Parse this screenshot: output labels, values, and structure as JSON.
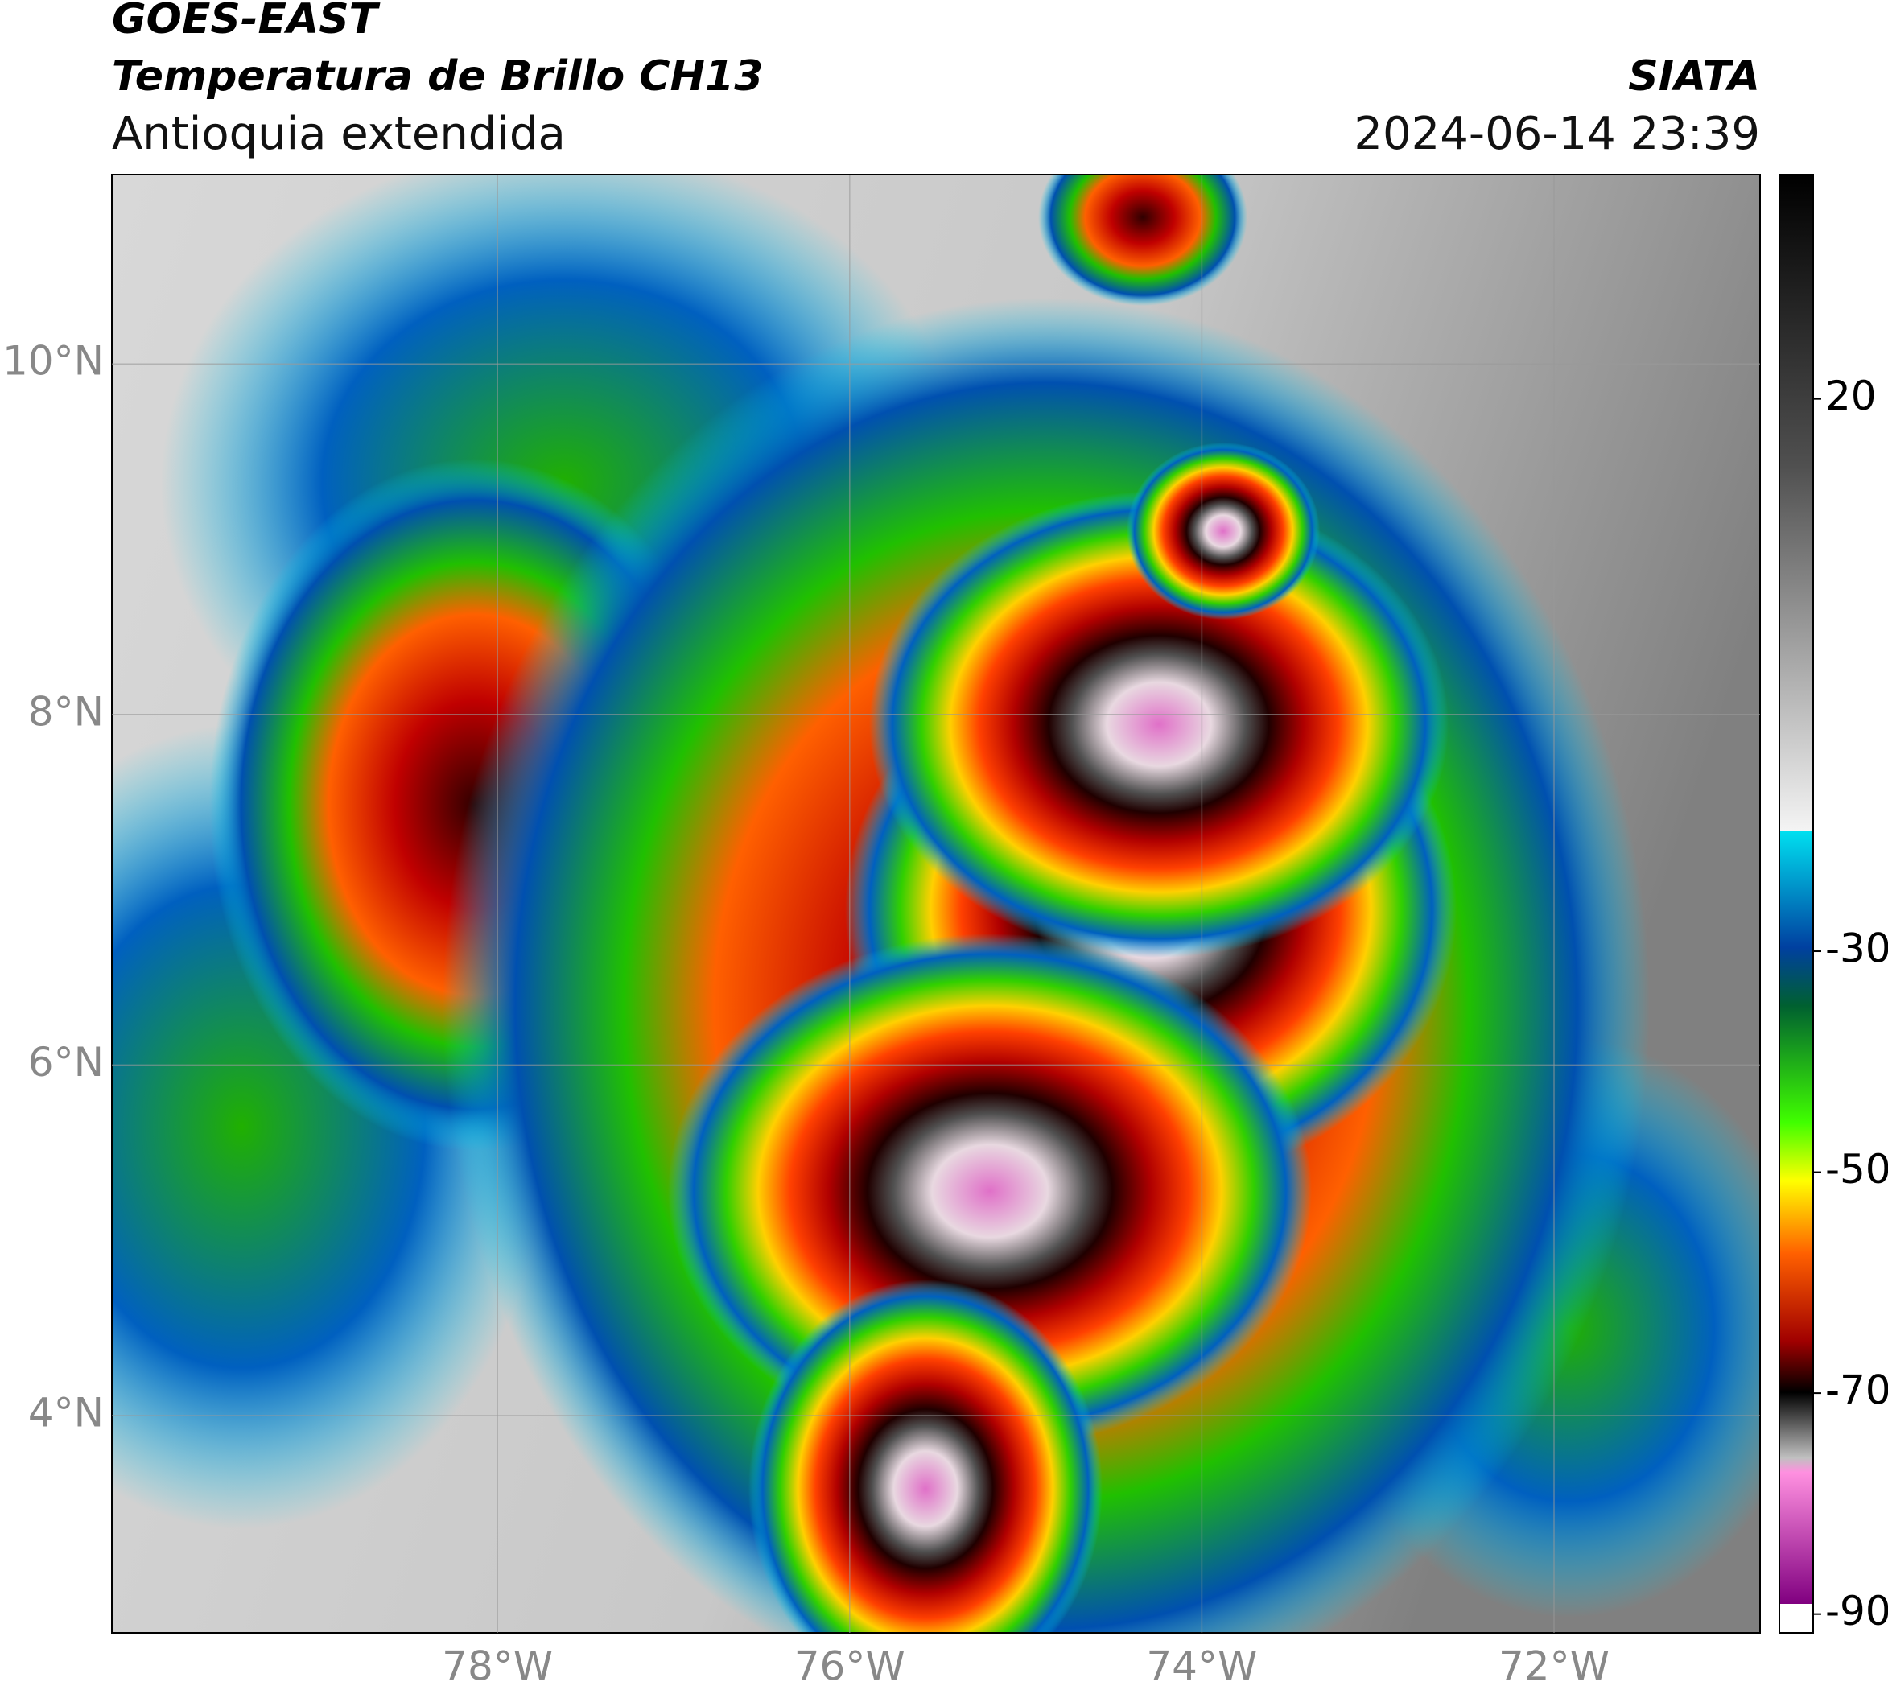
{
  "header": {
    "title": "GOES-EAST",
    "subtitle": "Temperatura de Brillo CH13",
    "region": "Antioquia extendida",
    "source": "SIATA",
    "datetime": "2024-06-14 23:39"
  },
  "map": {
    "xlim": [
      -80.19,
      -70.83
    ],
    "ylim": [
      2.76,
      11.08
    ],
    "xticks": [
      {
        "value": -78,
        "label": "78°W"
      },
      {
        "value": -76,
        "label": "76°W"
      },
      {
        "value": -74,
        "label": "74°W"
      },
      {
        "value": -72,
        "label": "72°W"
      }
    ],
    "yticks": [
      {
        "value": 4,
        "label": "4°N"
      },
      {
        "value": 6,
        "label": "6°N"
      },
      {
        "value": 8,
        "label": "8°N"
      },
      {
        "value": 10,
        "label": "10°N"
      }
    ],
    "grid": true
  },
  "colorbar": {
    "lim": [
      -91.7,
      40.3
    ],
    "ticks": [
      20,
      -30,
      -50,
      -70,
      -90
    ]
  }
}
